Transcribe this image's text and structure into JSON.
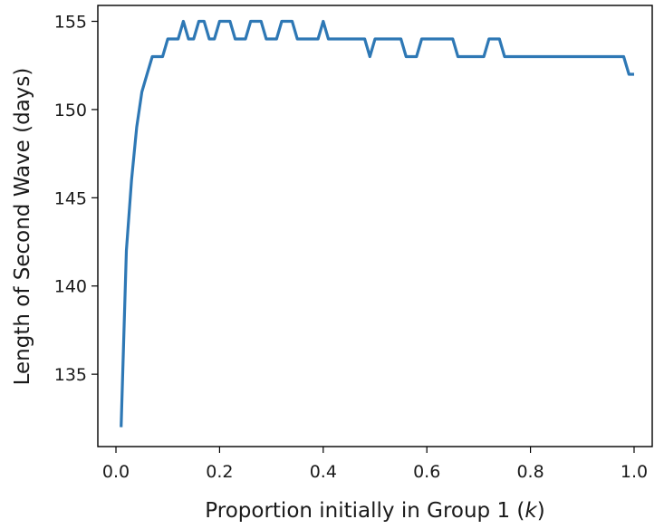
{
  "chart_data": {
    "type": "line",
    "xlabel_prefix": "Proportion initially in Group 1 (",
    "xlabel_var": "k",
    "xlabel_suffix": ")",
    "ylabel": "Length of Second Wave (days)",
    "xlim": [
      -0.035,
      1.035
    ],
    "ylim": [
      130.9,
      155.9
    ],
    "xticks": [
      0.0,
      0.2,
      0.4,
      0.6,
      0.8,
      1.0
    ],
    "xtick_labels": [
      "0.0",
      "0.2",
      "0.4",
      "0.6",
      "0.8",
      "1.0"
    ],
    "yticks": [
      135,
      140,
      145,
      150,
      155
    ],
    "ytick_labels": [
      "135",
      "140",
      "145",
      "150",
      "155"
    ],
    "grid": false,
    "series": [
      {
        "color": "#2e78b5",
        "x": [
          0.01,
          0.02,
          0.03,
          0.04,
          0.05,
          0.06,
          0.07,
          0.08,
          0.09,
          0.1,
          0.11,
          0.12,
          0.13,
          0.14,
          0.15,
          0.16,
          0.17,
          0.18,
          0.19,
          0.2,
          0.21,
          0.22,
          0.23,
          0.24,
          0.25,
          0.26,
          0.27,
          0.28,
          0.29,
          0.3,
          0.31,
          0.32,
          0.33,
          0.34,
          0.35,
          0.36,
          0.37,
          0.38,
          0.39,
          0.4,
          0.41,
          0.42,
          0.43,
          0.44,
          0.45,
          0.46,
          0.47,
          0.48,
          0.49,
          0.5,
          0.51,
          0.52,
          0.53,
          0.54,
          0.55,
          0.56,
          0.57,
          0.58,
          0.59,
          0.6,
          0.61,
          0.62,
          0.63,
          0.64,
          0.65,
          0.66,
          0.67,
          0.68,
          0.69,
          0.7,
          0.71,
          0.72,
          0.73,
          0.74,
          0.75,
          0.76,
          0.77,
          0.78,
          0.79,
          0.8,
          0.81,
          0.82,
          0.83,
          0.84,
          0.85,
          0.86,
          0.87,
          0.88,
          0.89,
          0.9,
          0.91,
          0.92,
          0.93,
          0.94,
          0.95,
          0.96,
          0.97,
          0.98,
          0.99,
          1.0
        ],
        "y": [
          132,
          142,
          146,
          149,
          151,
          152,
          153,
          153,
          153,
          154,
          154,
          154,
          155,
          154,
          154,
          155,
          155,
          154,
          154,
          155,
          155,
          155,
          154,
          154,
          154,
          155,
          155,
          155,
          154,
          154,
          154,
          155,
          155,
          155,
          154,
          154,
          154,
          154,
          154,
          155,
          154,
          154,
          154,
          154,
          154,
          154,
          154,
          154,
          153,
          154,
          154,
          154,
          154,
          154,
          154,
          153,
          153,
          153,
          154,
          154,
          154,
          154,
          154,
          154,
          154,
          153,
          153,
          153,
          153,
          153,
          153,
          154,
          154,
          154,
          153,
          153,
          153,
          153,
          153,
          153,
          153,
          153,
          153,
          153,
          153,
          153,
          153,
          153,
          153,
          153,
          153,
          153,
          153,
          153,
          153,
          153,
          153,
          153,
          152,
          152
        ]
      }
    ]
  }
}
